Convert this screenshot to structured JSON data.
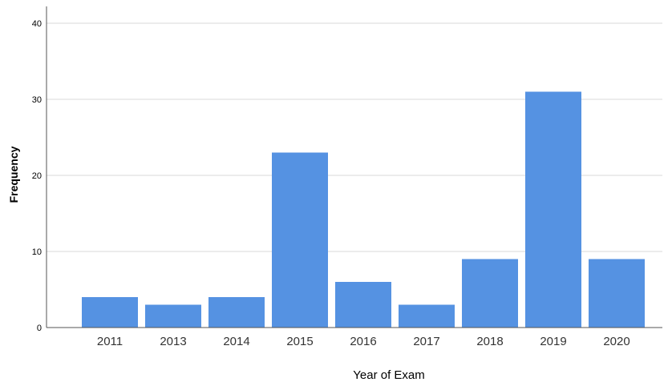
{
  "chart_data": {
    "type": "bar",
    "title": "",
    "xlabel": "Year of Exam",
    "ylabel": "Frequency",
    "categories": [
      "2011",
      "2013",
      "2014",
      "2015",
      "2016",
      "2017",
      "2018",
      "2019",
      "2020"
    ],
    "values": [
      4,
      3,
      4,
      23,
      6,
      3,
      9,
      31,
      9
    ],
    "ylim": [
      0,
      40
    ],
    "yticks": [
      "0",
      "10",
      "20",
      "30",
      "40"
    ],
    "grid": true,
    "legend": "none",
    "colors": {
      "bar": "#5592e2",
      "grid": "#d9d9d9",
      "axis": "#555555"
    }
  }
}
